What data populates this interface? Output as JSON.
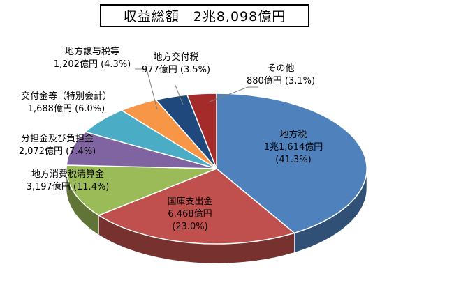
{
  "chart_data": {
    "type": "pie",
    "title": "収益総額　2兆8,098億円",
    "slices": [
      {
        "name": "地方税",
        "value_text": "1兆1,614億円",
        "percent_text": "(41.3%)",
        "value": 11614,
        "percent": 41.3,
        "color": "#4f81bd"
      },
      {
        "name": "国庫支出金",
        "value_text": "6,468億円",
        "percent_text": "(23.0%)",
        "value": 6468,
        "percent": 23.0,
        "color": "#c0504d"
      },
      {
        "name": "地方消費税清算金",
        "value_text": "3,197億円",
        "percent_text": "(11.4%)",
        "value": 3197,
        "percent": 11.4,
        "color": "#9bbb59"
      },
      {
        "name": "分担金及び負担金",
        "value_text": "2,072億円",
        "percent_text": "(7.4%)",
        "value": 2072,
        "percent": 7.4,
        "color": "#8064a2"
      },
      {
        "name": "交付金等（特別会計）",
        "value_text": "1,688億円",
        "percent_text": "(6.0%)",
        "value": 1688,
        "percent": 6.0,
        "color": "#4bacc6"
      },
      {
        "name": "地方譲与税等",
        "value_text": "1,202億円",
        "percent_text": "(4.3%)",
        "value": 1202,
        "percent": 4.3,
        "color": "#f79646"
      },
      {
        "name": "地方交付税",
        "value_text": "977億円",
        "percent_text": "(3.5%)",
        "value": 977,
        "percent": 3.5,
        "color": "#1f497d"
      },
      {
        "name": "その他",
        "value_text": "880億円",
        "percent_text": "(3.1%)",
        "value": 880,
        "percent": 3.1,
        "color": "#a52a2a"
      }
    ]
  }
}
